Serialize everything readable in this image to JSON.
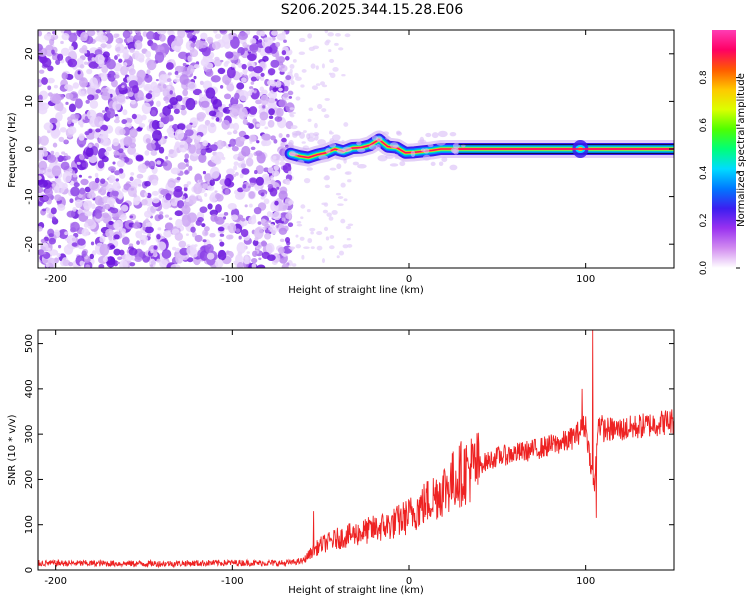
{
  "title": "S206.2025.344.15.28.E06",
  "chart_data": [
    {
      "type": "heatmap",
      "xlabel": "Height of straight line (km)",
      "ylabel": "Frequency (Hz)",
      "xlim": [
        -210,
        150
      ],
      "ylim": [
        -25,
        25
      ],
      "xticks": [
        -200,
        -100,
        0,
        100
      ],
      "yticks": [
        -20,
        -10,
        0,
        10,
        20
      ],
      "x_tick_labels": [
        "-200",
        "-100",
        "0",
        "100"
      ],
      "y_tick_labels": [
        "-20",
        "-10",
        "0",
        "10",
        "20"
      ],
      "noise_region_x": [
        -210,
        -67
      ],
      "signal_trace": {
        "x": [
          -67,
          -62,
          -57,
          -52,
          -47,
          -42,
          -37,
          -32,
          -27,
          -22,
          -17,
          -12,
          -7,
          -2,
          3,
          8,
          13,
          18,
          23,
          28,
          150
        ],
        "frequency": [
          -1.0,
          -1.5,
          -1.8,
          -1.2,
          -0.8,
          0.0,
          -0.5,
          0.2,
          0.3,
          0.8,
          2.0,
          0.5,
          0.3,
          -0.8,
          -0.7,
          -0.5,
          -0.3,
          0.0,
          0.0,
          0.0,
          0.0
        ]
      },
      "secondary_burst_x": 97,
      "colorbar": {
        "label": "Normalized spectral amplitude",
        "range": [
          0.0,
          1.0
        ],
        "ticks": [
          0.0,
          0.2,
          0.4,
          0.6,
          0.8
        ],
        "tick_labels": [
          "0.0",
          "0.2",
          "0.4",
          "0.6",
          "0.8"
        ],
        "colors": [
          "#ffffff",
          "#d28cf0",
          "#9a32f0",
          "#3c1ef0",
          "#0078ff",
          "#00dcff",
          "#00ff78",
          "#50ff00",
          "#dcff00",
          "#ffc800",
          "#ff5a00",
          "#ff0064",
          "#ff3cb4"
        ]
      }
    },
    {
      "type": "line",
      "xlabel": "Height of straight line (km)",
      "ylabel": "SNR (10 * v/v)",
      "xlim": [
        -210,
        150
      ],
      "ylim": [
        0,
        530
      ],
      "xticks": [
        -200,
        -100,
        0,
        100
      ],
      "yticks": [
        0,
        100,
        200,
        300,
        400,
        500
      ],
      "x_tick_labels": [
        "-200",
        "-100",
        "0",
        "100"
      ],
      "y_tick_labels": [
        "0",
        "100",
        "200",
        "300",
        "400",
        "500"
      ],
      "color": "#ee2222",
      "trend": {
        "x": [
          -210,
          -140,
          -100,
          -70,
          -60,
          -55,
          -50,
          -40,
          -30,
          -20,
          -10,
          0,
          10,
          20,
          30,
          50,
          70,
          90,
          95,
          100,
          103,
          105,
          107,
          110,
          120,
          150
        ],
        "y": [
          15,
          14,
          16,
          15,
          20,
          40,
          55,
          70,
          80,
          90,
          100,
          120,
          150,
          180,
          215,
          250,
          265,
          285,
          300,
          320,
          230,
          180,
          330,
          310,
          310,
          330
        ]
      },
      "spikes": [
        {
          "x": 104,
          "y": 530
        },
        {
          "x": 106,
          "y": 115
        },
        {
          "x": 98,
          "y": 400
        },
        {
          "x": -54,
          "y": 130
        }
      ]
    }
  ]
}
